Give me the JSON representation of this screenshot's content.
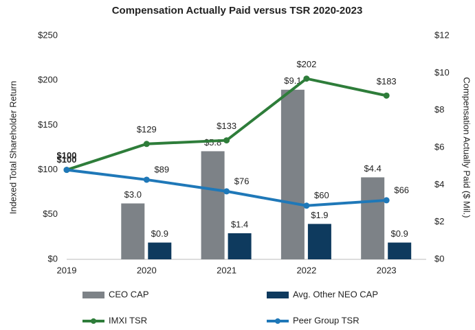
{
  "chart_data": {
    "type": "combo",
    "title": "Compensation Actually Paid versus TSR 2020-2023",
    "y_label": "Indexed Total Shareholder Return",
    "y2_label": "Compensation Actually Paid ($ Mil.)",
    "categories": [
      "2019",
      "2020",
      "2021",
      "2022",
      "2023"
    ],
    "ylim": [
      0,
      250
    ],
    "yticks": [
      {
        "value": 0,
        "label": "$0"
      },
      {
        "value": 50,
        "label": "$50"
      },
      {
        "value": 100,
        "label": "$100"
      },
      {
        "value": 150,
        "label": "$150"
      },
      {
        "value": 200,
        "label": "$200"
      },
      {
        "value": 250,
        "label": "$250"
      }
    ],
    "y2lim": [
      0,
      12
    ],
    "y2ticks": [
      {
        "value": 0,
        "label": "$0"
      },
      {
        "value": 2,
        "label": "$2"
      },
      {
        "value": 4,
        "label": "$4"
      },
      {
        "value": 6,
        "label": "$6"
      },
      {
        "value": 8,
        "label": "$8"
      },
      {
        "value": 10,
        "label": "$10"
      },
      {
        "value": 12,
        "label": "$12"
      }
    ],
    "series": [
      {
        "name": "CEO CAP",
        "type": "bar",
        "axis": "y2",
        "color": "#7d8287",
        "values": [
          null,
          3.0,
          5.8,
          9.1,
          4.4
        ],
        "value_labels": [
          null,
          "$3.0",
          "$5.8",
          "$9.1",
          "$4.4"
        ]
      },
      {
        "name": "Avg. Other NEO CAP",
        "type": "bar",
        "axis": "y2",
        "color": "#0e3a5e",
        "values": [
          null,
          0.9,
          1.4,
          1.9,
          0.9
        ],
        "value_labels": [
          null,
          "$0.9",
          "$1.4",
          "$1.9",
          "$0.9"
        ]
      },
      {
        "name": "IMXI TSR",
        "type": "line",
        "color": "#2e7d3a",
        "values": [
          100,
          129,
          133,
          202,
          183
        ],
        "value_labels": [
          "$100",
          "$129",
          "$133",
          "$202",
          "$183"
        ]
      },
      {
        "name": "Peer Group TSR",
        "type": "line",
        "color": "#1f78b8",
        "values": [
          100,
          89,
          76,
          60,
          66
        ],
        "value_labels": [
          "$100",
          "$89",
          "$76",
          "$60",
          "$66"
        ]
      }
    ],
    "legend": "bottom"
  }
}
